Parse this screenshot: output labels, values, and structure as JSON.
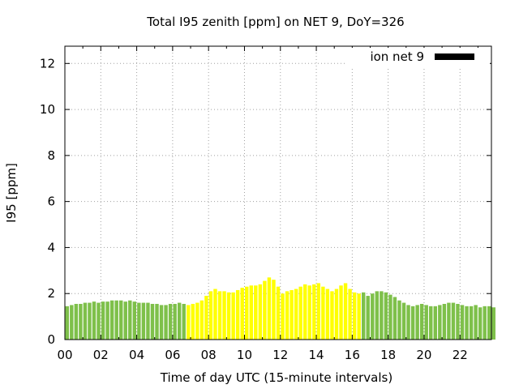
{
  "chart_data": {
    "type": "bar",
    "title": "Total I95 zenith [ppm] on NET 9, DoY=326",
    "xlabel": "Time of day UTC (15-minute intervals)",
    "ylabel": "I95 [ppm]",
    "xlim": [
      0,
      23.75
    ],
    "ylim": [
      0,
      12.75
    ],
    "x_ticks": [
      "00",
      "02",
      "04",
      "06",
      "08",
      "10",
      "12",
      "14",
      "16",
      "18",
      "20",
      "22"
    ],
    "y_ticks": [
      "0",
      "2",
      "4",
      "6",
      "8",
      "10",
      "12"
    ],
    "grid": true,
    "legend": {
      "label": "ion net 9",
      "color": "#000000",
      "placement": "top-right"
    },
    "colors": {
      "night": "#7ec04a",
      "day": "#ffff00"
    },
    "day_hours": [
      6.75,
      16.5
    ],
    "interval_hours": 0.25,
    "values": [
      1.45,
      1.5,
      1.55,
      1.55,
      1.6,
      1.6,
      1.65,
      1.6,
      1.65,
      1.65,
      1.7,
      1.7,
      1.7,
      1.65,
      1.7,
      1.65,
      1.6,
      1.6,
      1.6,
      1.55,
      1.55,
      1.5,
      1.5,
      1.55,
      1.55,
      1.6,
      1.55,
      1.5,
      1.55,
      1.6,
      1.7,
      1.9,
      2.1,
      2.2,
      2.1,
      2.1,
      2.05,
      2.05,
      2.15,
      2.25,
      2.3,
      2.35,
      2.35,
      2.4,
      2.55,
      2.7,
      2.6,
      2.3,
      2.0,
      2.1,
      2.15,
      2.2,
      2.3,
      2.4,
      2.35,
      2.4,
      2.45,
      2.3,
      2.2,
      2.1,
      2.2,
      2.35,
      2.45,
      2.2,
      2.05,
      2.0,
      2.05,
      1.9,
      2.0,
      2.1,
      2.1,
      2.05,
      1.95,
      1.85,
      1.7,
      1.6,
      1.5,
      1.45,
      1.5,
      1.55,
      1.5,
      1.45,
      1.45,
      1.5,
      1.55,
      1.6,
      1.6,
      1.55,
      1.5,
      1.45,
      1.45,
      1.5,
      1.4,
      1.45,
      1.45,
      1.4
    ]
  }
}
